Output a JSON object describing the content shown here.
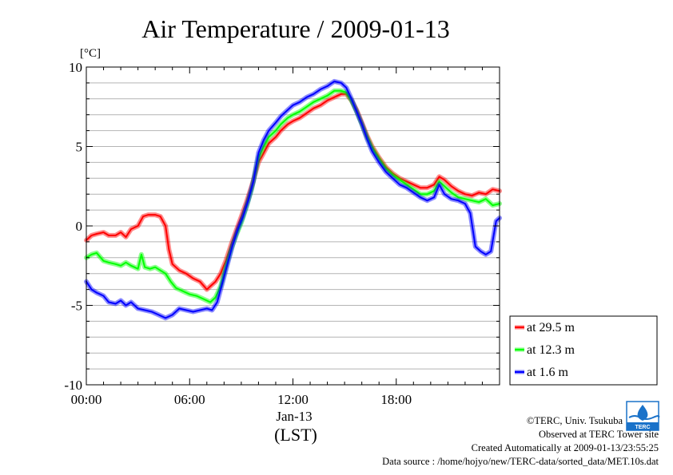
{
  "chart_data": {
    "type": "line",
    "title": "Air Temperature / 2009-01-13",
    "yunit": "[°C]",
    "xlabel": "(LST)",
    "date_label": "Jan-13",
    "xlim": [
      0,
      24
    ],
    "ylim": [
      -10,
      10
    ],
    "xticks": [
      0,
      6,
      12,
      18
    ],
    "xtick_labels": [
      "00:00",
      "06:00",
      "12:00",
      "18:00"
    ],
    "yticks": [
      10,
      5,
      0,
      -5,
      -10
    ],
    "ytick_labels": [
      "10",
      "5",
      "0",
      "-5",
      "-10"
    ],
    "grid": true,
    "legend_position": "bottom-right outside",
    "series": [
      {
        "name": "at 29.5 m",
        "color": "#ff0000",
        "points": [
          [
            0,
            -0.9
          ],
          [
            0.3,
            -0.6
          ],
          [
            0.6,
            -0.5
          ],
          [
            1.0,
            -0.4
          ],
          [
            1.3,
            -0.6
          ],
          [
            1.7,
            -0.6
          ],
          [
            2.0,
            -0.4
          ],
          [
            2.3,
            -0.7
          ],
          [
            2.6,
            -0.2
          ],
          [
            3.0,
            0.0
          ],
          [
            3.3,
            0.6
          ],
          [
            3.6,
            0.7
          ],
          [
            4.0,
            0.7
          ],
          [
            4.3,
            0.6
          ],
          [
            4.6,
            0.0
          ],
          [
            4.8,
            -1.5
          ],
          [
            5.0,
            -2.4
          ],
          [
            5.4,
            -2.8
          ],
          [
            5.8,
            -3.0
          ],
          [
            6.2,
            -3.3
          ],
          [
            6.6,
            -3.5
          ],
          [
            7.0,
            -4.0
          ],
          [
            7.2,
            -3.8
          ],
          [
            7.5,
            -3.5
          ],
          [
            7.8,
            -3.0
          ],
          [
            8.1,
            -2.2
          ],
          [
            8.4,
            -1.2
          ],
          [
            8.7,
            -0.3
          ],
          [
            9.0,
            0.6
          ],
          [
            9.3,
            1.5
          ],
          [
            9.6,
            2.5
          ],
          [
            10.0,
            4.0
          ],
          [
            10.3,
            4.6
          ],
          [
            10.6,
            5.2
          ],
          [
            11.0,
            5.6
          ],
          [
            11.3,
            6.0
          ],
          [
            11.7,
            6.4
          ],
          [
            12.0,
            6.6
          ],
          [
            12.4,
            6.8
          ],
          [
            12.8,
            7.1
          ],
          [
            13.2,
            7.4
          ],
          [
            13.6,
            7.6
          ],
          [
            14.0,
            7.9
          ],
          [
            14.4,
            8.1
          ],
          [
            14.8,
            8.3
          ],
          [
            15.1,
            8.3
          ],
          [
            15.4,
            7.9
          ],
          [
            15.7,
            7.3
          ],
          [
            16.0,
            6.5
          ],
          [
            16.3,
            5.7
          ],
          [
            16.6,
            5.0
          ],
          [
            17.0,
            4.3
          ],
          [
            17.4,
            3.7
          ],
          [
            17.8,
            3.3
          ],
          [
            18.2,
            3.0
          ],
          [
            18.6,
            2.8
          ],
          [
            19.0,
            2.6
          ],
          [
            19.4,
            2.4
          ],
          [
            19.8,
            2.4
          ],
          [
            20.2,
            2.6
          ],
          [
            20.5,
            3.1
          ],
          [
            20.8,
            2.9
          ],
          [
            21.2,
            2.5
          ],
          [
            21.6,
            2.2
          ],
          [
            22.0,
            2.0
          ],
          [
            22.4,
            1.9
          ],
          [
            22.8,
            2.1
          ],
          [
            23.2,
            2.0
          ],
          [
            23.6,
            2.3
          ],
          [
            24.0,
            2.2
          ]
        ]
      },
      {
        "name": "at 12.3 m",
        "color": "#00ff00",
        "points": [
          [
            0,
            -2.0
          ],
          [
            0.3,
            -1.8
          ],
          [
            0.6,
            -1.7
          ],
          [
            1.0,
            -2.2
          ],
          [
            1.3,
            -2.3
          ],
          [
            1.7,
            -2.4
          ],
          [
            2.0,
            -2.5
          ],
          [
            2.3,
            -2.3
          ],
          [
            2.6,
            -2.5
          ],
          [
            3.0,
            -2.7
          ],
          [
            3.2,
            -1.8
          ],
          [
            3.4,
            -2.6
          ],
          [
            3.7,
            -2.7
          ],
          [
            4.0,
            -2.6
          ],
          [
            4.3,
            -2.8
          ],
          [
            4.6,
            -3.0
          ],
          [
            4.9,
            -3.5
          ],
          [
            5.2,
            -3.9
          ],
          [
            5.6,
            -4.1
          ],
          [
            6.0,
            -4.3
          ],
          [
            6.4,
            -4.4
          ],
          [
            6.8,
            -4.6
          ],
          [
            7.2,
            -4.8
          ],
          [
            7.5,
            -4.5
          ],
          [
            7.8,
            -3.8
          ],
          [
            8.1,
            -2.6
          ],
          [
            8.4,
            -1.5
          ],
          [
            8.7,
            -0.6
          ],
          [
            9.0,
            0.2
          ],
          [
            9.3,
            1.2
          ],
          [
            9.6,
            2.3
          ],
          [
            10.0,
            4.3
          ],
          [
            10.3,
            5.0
          ],
          [
            10.6,
            5.6
          ],
          [
            11.0,
            6.0
          ],
          [
            11.3,
            6.4
          ],
          [
            11.7,
            6.8
          ],
          [
            12.0,
            7.0
          ],
          [
            12.4,
            7.2
          ],
          [
            12.8,
            7.5
          ],
          [
            13.2,
            7.8
          ],
          [
            13.6,
            8.0
          ],
          [
            14.0,
            8.2
          ],
          [
            14.4,
            8.5
          ],
          [
            14.8,
            8.5
          ],
          [
            15.1,
            8.4
          ],
          [
            15.4,
            7.9
          ],
          [
            15.7,
            7.2
          ],
          [
            16.0,
            6.4
          ],
          [
            16.3,
            5.6
          ],
          [
            16.6,
            4.9
          ],
          [
            17.0,
            4.2
          ],
          [
            17.4,
            3.6
          ],
          [
            17.8,
            3.2
          ],
          [
            18.2,
            2.9
          ],
          [
            18.6,
            2.6
          ],
          [
            19.0,
            2.3
          ],
          [
            19.4,
            2.0
          ],
          [
            19.8,
            2.0
          ],
          [
            20.2,
            2.2
          ],
          [
            20.5,
            2.8
          ],
          [
            20.8,
            2.5
          ],
          [
            21.2,
            2.1
          ],
          [
            21.6,
            1.8
          ],
          [
            22.0,
            1.7
          ],
          [
            22.4,
            1.6
          ],
          [
            22.8,
            1.5
          ],
          [
            23.2,
            1.7
          ],
          [
            23.6,
            1.3
          ],
          [
            24.0,
            1.4
          ]
        ]
      },
      {
        "name": "at 1.6 m",
        "color": "#0000ff",
        "points": [
          [
            0,
            -3.5
          ],
          [
            0.3,
            -4.0
          ],
          [
            0.6,
            -4.2
          ],
          [
            1.0,
            -4.4
          ],
          [
            1.3,
            -4.8
          ],
          [
            1.7,
            -4.9
          ],
          [
            2.0,
            -4.7
          ],
          [
            2.3,
            -5.0
          ],
          [
            2.6,
            -4.8
          ],
          [
            3.0,
            -5.2
          ],
          [
            3.4,
            -5.3
          ],
          [
            3.8,
            -5.4
          ],
          [
            4.2,
            -5.6
          ],
          [
            4.6,
            -5.8
          ],
          [
            5.0,
            -5.6
          ],
          [
            5.4,
            -5.2
          ],
          [
            5.8,
            -5.3
          ],
          [
            6.2,
            -5.4
          ],
          [
            6.6,
            -5.3
          ],
          [
            7.0,
            -5.2
          ],
          [
            7.3,
            -5.3
          ],
          [
            7.6,
            -4.8
          ],
          [
            7.9,
            -3.6
          ],
          [
            8.2,
            -2.4
          ],
          [
            8.5,
            -1.2
          ],
          [
            8.8,
            -0.2
          ],
          [
            9.1,
            0.6
          ],
          [
            9.4,
            1.6
          ],
          [
            9.7,
            2.8
          ],
          [
            10.0,
            4.6
          ],
          [
            10.3,
            5.4
          ],
          [
            10.6,
            6.0
          ],
          [
            11.0,
            6.5
          ],
          [
            11.3,
            6.9
          ],
          [
            11.7,
            7.3
          ],
          [
            12.0,
            7.6
          ],
          [
            12.4,
            7.8
          ],
          [
            12.8,
            8.1
          ],
          [
            13.2,
            8.3
          ],
          [
            13.6,
            8.6
          ],
          [
            14.0,
            8.8
          ],
          [
            14.4,
            9.1
          ],
          [
            14.8,
            9.0
          ],
          [
            15.1,
            8.7
          ],
          [
            15.4,
            8.0
          ],
          [
            15.7,
            7.2
          ],
          [
            16.0,
            6.4
          ],
          [
            16.3,
            5.5
          ],
          [
            16.6,
            4.7
          ],
          [
            17.0,
            4.0
          ],
          [
            17.4,
            3.4
          ],
          [
            17.8,
            3.0
          ],
          [
            18.2,
            2.6
          ],
          [
            18.6,
            2.4
          ],
          [
            19.0,
            2.1
          ],
          [
            19.4,
            1.8
          ],
          [
            19.8,
            1.6
          ],
          [
            20.2,
            1.8
          ],
          [
            20.5,
            2.6
          ],
          [
            20.8,
            2.0
          ],
          [
            21.2,
            1.7
          ],
          [
            21.6,
            1.6
          ],
          [
            22.0,
            1.4
          ],
          [
            22.3,
            0.8
          ],
          [
            22.6,
            -1.3
          ],
          [
            22.9,
            -1.6
          ],
          [
            23.2,
            -1.8
          ],
          [
            23.5,
            -1.6
          ],
          [
            23.8,
            0.3
          ],
          [
            24.0,
            0.5
          ]
        ]
      }
    ]
  },
  "footer": {
    "copyright": "©TERC, Univ. Tsukuba",
    "observed": "Observed at TERC Tower site",
    "created": "Created Automatically at 2009-01-13/23:55:25",
    "source": "Data source : /home/hojyo/new/TERC-data/sorted_data/MET.10s.dat"
  },
  "logo": {
    "text": "TERC",
    "color": "#1a72c9",
    "icon": "terc-logo-icon"
  }
}
